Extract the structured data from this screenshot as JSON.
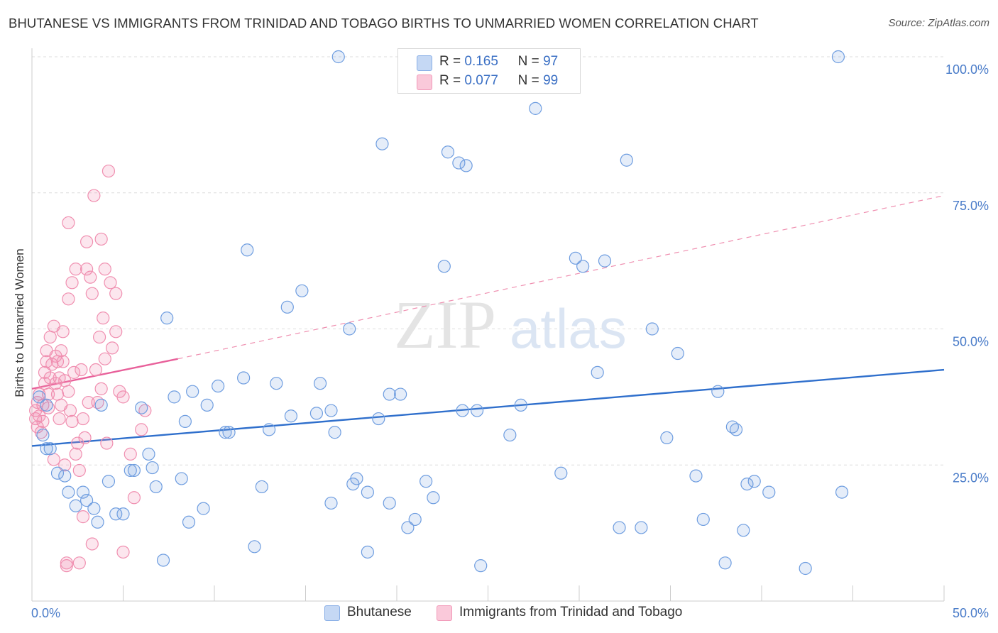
{
  "title": "BHUTANESE VS IMMIGRANTS FROM TRINIDAD AND TOBAGO BIRTHS TO UNMARRIED WOMEN CORRELATION CHART",
  "source": "Source: ZipAtlas.com",
  "watermark": {
    "zip": "ZIP",
    "atlas": "atlas"
  },
  "legend": {
    "r_label": "R =",
    "n_label": "N =",
    "series": [
      {
        "r": "0.165",
        "n": "97"
      },
      {
        "r": "0.077",
        "n": "99"
      }
    ]
  },
  "chart_data": {
    "type": "scatter",
    "title": "BHUTANESE VS IMMIGRANTS FROM TRINIDAD AND TOBAGO BIRTHS TO UNMARRIED WOMEN CORRELATION CHART",
    "xlabel": "",
    "ylabel": "Births to Unmarried Women",
    "xlim": [
      0,
      50
    ],
    "ylim": [
      0,
      100
    ],
    "x_tick_labels": [
      "0.0%",
      "50.0%"
    ],
    "y_tick_labels": [
      "25.0%",
      "50.0%",
      "75.0%",
      "100.0%"
    ],
    "y_ticks": [
      25,
      50,
      75,
      100
    ],
    "grid": true,
    "legend_position": "top-center",
    "series": [
      {
        "name": "Bhutanese",
        "color": "#6e9de0",
        "trend": {
          "x": [
            0,
            50
          ],
          "y": [
            28.5,
            42.5
          ],
          "style": "solid"
        },
        "points": [
          [
            0.4,
            37.5
          ],
          [
            0.6,
            30.5
          ],
          [
            0.8,
            36
          ],
          [
            0.8,
            28
          ],
          [
            1.0,
            28
          ],
          [
            1.4,
            23.5
          ],
          [
            1.8,
            23
          ],
          [
            2.0,
            20
          ],
          [
            2.4,
            17.5
          ],
          [
            2.8,
            20
          ],
          [
            3.0,
            18.5
          ],
          [
            3.4,
            17
          ],
          [
            3.6,
            14.5
          ],
          [
            3.8,
            36
          ],
          [
            4.2,
            22
          ],
          [
            4.6,
            16
          ],
          [
            5.0,
            16
          ],
          [
            5.4,
            24
          ],
          [
            5.6,
            24
          ],
          [
            6.0,
            35.5
          ],
          [
            6.4,
            27
          ],
          [
            6.6,
            24.5
          ],
          [
            6.8,
            21
          ],
          [
            7.2,
            7.5
          ],
          [
            7.4,
            52
          ],
          [
            7.8,
            37.5
          ],
          [
            8.2,
            22.5
          ],
          [
            8.4,
            33
          ],
          [
            8.6,
            14.5
          ],
          [
            8.8,
            38.5
          ],
          [
            9.4,
            17
          ],
          [
            9.6,
            36
          ],
          [
            10.2,
            39.5
          ],
          [
            10.6,
            31
          ],
          [
            10.8,
            31
          ],
          [
            11.6,
            41
          ],
          [
            11.8,
            64.5
          ],
          [
            12.2,
            10
          ],
          [
            12.6,
            21
          ],
          [
            13.0,
            31.5
          ],
          [
            13.4,
            40
          ],
          [
            14.0,
            54
          ],
          [
            14.2,
            34
          ],
          [
            14.8,
            57
          ],
          [
            15.6,
            34.5
          ],
          [
            15.8,
            40
          ],
          [
            16.4,
            35
          ],
          [
            16.6,
            31
          ],
          [
            16.8,
            100
          ],
          [
            16.4,
            18
          ],
          [
            17.4,
            50
          ],
          [
            17.6,
            21.5
          ],
          [
            17.8,
            22.5
          ],
          [
            18.4,
            20
          ],
          [
            18.4,
            9
          ],
          [
            19.0,
            33.5
          ],
          [
            19.6,
            38
          ],
          [
            19.6,
            18
          ],
          [
            20.2,
            38
          ],
          [
            19.2,
            84
          ],
          [
            20.6,
            13.5
          ],
          [
            21.0,
            15
          ],
          [
            21.6,
            22
          ],
          [
            22.0,
            19
          ],
          [
            22.6,
            61.5
          ],
          [
            22.8,
            82.5
          ],
          [
            23.4,
            80.5
          ],
          [
            23.8,
            80
          ],
          [
            23.6,
            35
          ],
          [
            24.4,
            35
          ],
          [
            24.6,
            6.5
          ],
          [
            26.2,
            30.5
          ],
          [
            26.8,
            36
          ],
          [
            27.6,
            90.5
          ],
          [
            29.0,
            23.5
          ],
          [
            29.8,
            63
          ],
          [
            30.2,
            61.5
          ],
          [
            31.0,
            42
          ],
          [
            31.4,
            62.5
          ],
          [
            32.2,
            13.5
          ],
          [
            32.6,
            81
          ],
          [
            33.4,
            13.5
          ],
          [
            34.0,
            50
          ],
          [
            34.8,
            30
          ],
          [
            35.4,
            45.5
          ],
          [
            36.4,
            23
          ],
          [
            36.8,
            15
          ],
          [
            37.6,
            38.5
          ],
          [
            38.0,
            7
          ],
          [
            38.4,
            32
          ],
          [
            38.6,
            31.5
          ],
          [
            39.0,
            13
          ],
          [
            39.2,
            21.5
          ],
          [
            39.6,
            22
          ],
          [
            40.4,
            20
          ],
          [
            42.4,
            6
          ],
          [
            44.2,
            100
          ],
          [
            44.4,
            20
          ]
        ]
      },
      {
        "name": "Immigrants from Trinidad and Tobago",
        "color": "#f08fb0",
        "trend": {
          "x": [
            0,
            8
          ],
          "y": [
            39,
            44.5
          ],
          "style": "solid",
          "extended": {
            "x": [
              8,
              50
            ],
            "y": [
              44.5,
              74.5
            ],
            "style": "dashed"
          }
        },
        "points": [
          [
            0.2,
            35
          ],
          [
            0.2,
            33.5
          ],
          [
            0.3,
            36.5
          ],
          [
            0.3,
            32
          ],
          [
            0.4,
            38
          ],
          [
            0.4,
            34
          ],
          [
            0.5,
            31
          ],
          [
            0.6,
            36
          ],
          [
            0.6,
            33
          ],
          [
            0.7,
            40
          ],
          [
            0.7,
            42
          ],
          [
            0.8,
            44
          ],
          [
            0.8,
            46
          ],
          [
            0.9,
            38
          ],
          [
            0.9,
            35.5
          ],
          [
            1.0,
            41
          ],
          [
            1.0,
            48.5
          ],
          [
            1.1,
            43.5
          ],
          [
            1.2,
            50.5
          ],
          [
            1.2,
            26
          ],
          [
            1.3,
            40
          ],
          [
            1.3,
            45
          ],
          [
            1.4,
            44
          ],
          [
            1.4,
            38
          ],
          [
            1.5,
            41
          ],
          [
            1.5,
            33.5
          ],
          [
            1.6,
            36
          ],
          [
            1.6,
            46
          ],
          [
            1.7,
            49.5
          ],
          [
            1.7,
            44
          ],
          [
            1.8,
            40.5
          ],
          [
            1.8,
            25
          ],
          [
            1.9,
            6.5
          ],
          [
            1.9,
            7
          ],
          [
            2.0,
            55.5
          ],
          [
            2.0,
            69.5
          ],
          [
            2.0,
            38.5
          ],
          [
            2.1,
            35
          ],
          [
            2.2,
            33
          ],
          [
            2.2,
            58.5
          ],
          [
            2.3,
            42
          ],
          [
            2.4,
            27
          ],
          [
            2.4,
            61
          ],
          [
            2.5,
            29
          ],
          [
            2.6,
            24
          ],
          [
            2.6,
            7
          ],
          [
            2.7,
            42.5
          ],
          [
            2.8,
            15.5
          ],
          [
            2.8,
            33.5
          ],
          [
            2.9,
            30
          ],
          [
            3.0,
            66
          ],
          [
            3.0,
            61
          ],
          [
            3.1,
            36.5
          ],
          [
            3.2,
            59.5
          ],
          [
            3.3,
            10.5
          ],
          [
            3.3,
            56.5
          ],
          [
            3.4,
            74.5
          ],
          [
            3.5,
            42.5
          ],
          [
            3.6,
            36.5
          ],
          [
            3.7,
            48.5
          ],
          [
            3.8,
            39
          ],
          [
            3.8,
            66.5
          ],
          [
            3.9,
            52
          ],
          [
            4.0,
            44.5
          ],
          [
            4.0,
            61
          ],
          [
            4.1,
            29
          ],
          [
            4.2,
            79
          ],
          [
            4.3,
            58.5
          ],
          [
            4.4,
            46.5
          ],
          [
            4.6,
            56.5
          ],
          [
            4.6,
            49.5
          ],
          [
            4.8,
            38.5
          ],
          [
            5.0,
            37.5
          ],
          [
            5.0,
            9
          ],
          [
            5.4,
            27
          ],
          [
            5.6,
            19
          ],
          [
            6.0,
            31.5
          ],
          [
            6.2,
            35
          ]
        ]
      }
    ]
  },
  "bottom_legend": [
    {
      "label": "Bhutanese"
    },
    {
      "label": "Immigrants from Trinidad and Tobago"
    }
  ]
}
